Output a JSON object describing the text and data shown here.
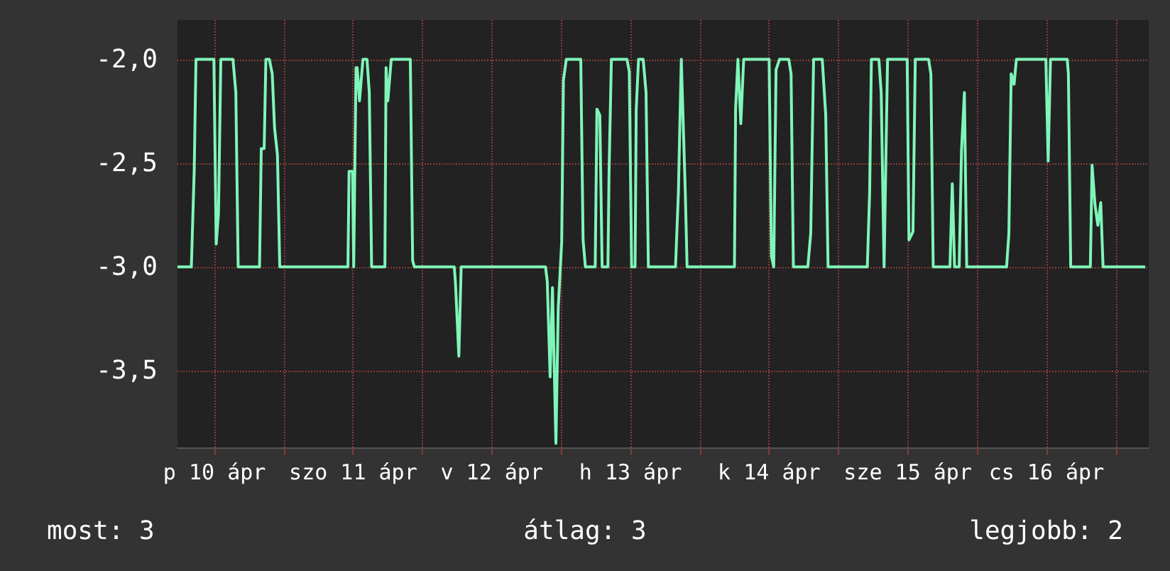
{
  "chart_data": {
    "type": "line",
    "x": [
      "--04-10T05:36",
      "--04-10T08:00",
      "--04-10T08:30",
      "--04-10T08:48",
      "--04-10T11:54",
      "--04-10T12:18",
      "--04-10T12:42",
      "--04-10T13:06",
      "--04-10T15:12",
      "--04-10T15:42",
      "--04-10T16:06",
      "--04-10T19:48",
      "--04-10T20:06",
      "--04-10T20:36",
      "--04-10T20:54",
      "--04-10T21:30",
      "--04-10T22:00",
      "--04-10T22:24",
      "--04-10T22:54",
      "--04-10T23:18",
      "--04-11T11:06",
      "--04-11T11:18",
      "--04-11T11:54",
      "--04-11T12:06",
      "--04-11T12:30",
      "--04-11T12:42",
      "--04-11T13:06",
      "--04-11T13:42",
      "--04-11T14:24",
      "--04-11T14:48",
      "--04-11T15:12",
      "--04-11T17:30",
      "--04-11T17:42",
      "--04-11T18:00",
      "--04-11T18:36",
      "--04-11T21:54",
      "--04-11T22:18",
      "--04-11T22:36",
      "--04-12T05:30",
      "--04-12T05:42",
      "--04-12T06:18",
      "--04-12T06:42",
      "--04-12T21:18",
      "--04-12T21:36",
      "--04-12T22:06",
      "--04-12T22:30",
      "--04-12T23:06",
      "--04-12T23:30",
      "--04-13T00:06",
      "--04-13T00:24",
      "--04-13T00:54",
      "--04-13T03:24",
      "--04-13T03:48",
      "--04-13T04:12",
      "--04-13T05:54",
      "--04-13T06:12",
      "--04-13T06:42",
      "--04-13T07:06",
      "--04-13T08:06",
      "--04-13T08:18",
      "--04-13T08:42",
      "--04-13T11:24",
      "--04-13T11:48",
      "--04-13T12:12",
      "--04-13T12:48",
      "--04-13T13:00",
      "--04-13T13:24",
      "--04-13T14:12",
      "--04-13T14:42",
      "--04-13T15:06",
      "--04-13T19:48",
      "--04-13T20:18",
      "--04-13T20:48",
      "--04-13T21:30",
      "--04-13T21:48",
      "--04-14T06:00",
      "--04-14T06:12",
      "--04-14T06:36",
      "--04-14T07:06",
      "--04-14T07:36",
      "--04-14T12:00",
      "--04-14T12:24",
      "--04-14T12:48",
      "--04-14T13:12",
      "--04-14T13:48",
      "--04-14T15:24",
      "--04-14T15:48",
      "--04-14T16:12",
      "--04-14T18:42",
      "--04-14T19:12",
      "--04-14T19:42",
      "--04-14T21:12",
      "--04-14T21:48",
      "--04-14T22:12",
      "--04-15T05:00",
      "--04-15T05:24",
      "--04-15T05:42",
      "--04-15T07:00",
      "--04-15T07:24",
      "--04-15T07:54",
      "--04-15T08:30",
      "--04-15T11:54",
      "--04-15T12:12",
      "--04-15T12:54",
      "--04-15T13:18",
      "--04-15T15:36",
      "--04-15T16:00",
      "--04-15T16:24",
      "--04-15T19:18",
      "--04-15T19:42",
      "--04-15T20:06",
      "--04-15T20:54",
      "--04-15T21:18",
      "--04-15T21:48",
      "--04-15T22:12",
      "--04-16T05:06",
      "--04-16T05:30",
      "--04-16T05:54",
      "--04-16T06:24",
      "--04-16T06:48",
      "--04-16T11:54",
      "--04-16T12:18",
      "--04-16T12:42",
      "--04-16T15:36",
      "--04-16T15:48",
      "--04-16T16:12",
      "--04-16T19:36",
      "--04-16T19:54",
      "--04-16T20:24",
      "--04-16T20:54",
      "--04-16T21:24",
      "--04-16T21:48",
      "--04-17T05:06"
    ],
    "series": [
      {
        "color": "#7ff5b8",
        "values": [
          -3.0,
          -3.0,
          -2.53,
          -2.0,
          -2.0,
          -2.89,
          -2.74,
          -2.0,
          -2.0,
          -2.16,
          -3.0,
          -3.0,
          -2.43,
          -2.43,
          -2.0,
          -2.0,
          -2.07,
          -2.33,
          -2.46,
          -3.0,
          -3.0,
          -2.54,
          -2.54,
          -3.0,
          -2.04,
          -2.04,
          -2.2,
          -2.0,
          -2.0,
          -2.16,
          -3.0,
          -3.0,
          -2.04,
          -2.2,
          -2.0,
          -2.0,
          -2.97,
          -3.0,
          -3.0,
          -3.07,
          -3.43,
          -3.0,
          -3.0,
          -3.07,
          -3.53,
          -3.1,
          -3.85,
          -3.2,
          -2.88,
          -2.1,
          -2.0,
          -2.0,
          -2.87,
          -3.0,
          -3.0,
          -2.24,
          -2.27,
          -3.0,
          -3.0,
          -2.54,
          -2.0,
          -2.0,
          -2.06,
          -3.0,
          -3.0,
          -2.24,
          -2.0,
          -2.0,
          -2.16,
          -3.0,
          -3.0,
          -2.64,
          -2.0,
          -2.65,
          -3.0,
          -3.0,
          -2.24,
          -2.0,
          -2.31,
          -2.0,
          -2.0,
          -2.95,
          -3.0,
          -2.05,
          -2.0,
          -2.0,
          -2.07,
          -3.0,
          -3.0,
          -2.84,
          -2.0,
          -2.0,
          -2.27,
          -3.0,
          -3.0,
          -2.64,
          -2.0,
          -2.0,
          -2.16,
          -3.0,
          -2.0,
          -2.0,
          -2.87,
          -2.83,
          -2.0,
          -2.0,
          -2.07,
          -3.0,
          -3.0,
          -2.6,
          -3.0,
          -3.0,
          -2.44,
          -2.16,
          -3.0,
          -3.0,
          -2.84,
          -2.07,
          -2.12,
          -2.0,
          -2.0,
          -2.49,
          -2.0,
          -2.0,
          -2.07,
          -3.0,
          -3.0,
          -2.51,
          -2.7,
          -2.8,
          -2.69,
          -3.0,
          -3.0
        ]
      }
    ],
    "xlim": [
      "--04-10T05:36",
      "--04-17T05:42"
    ],
    "xticks": [
      {
        "value": "--04-10T12:00",
        "label": "p 10 ápr"
      },
      {
        "value": "--04-11T00:00",
        "label": null
      },
      {
        "value": "--04-11T12:00",
        "label": "szo 11 ápr"
      },
      {
        "value": "--04-12T00:00",
        "label": null
      },
      {
        "value": "--04-12T12:00",
        "label": "v 12 ápr"
      },
      {
        "value": "--04-13T00:00",
        "label": null
      },
      {
        "value": "--04-13T12:00",
        "label": "h 13 ápr"
      },
      {
        "value": "--04-14T00:00",
        "label": null
      },
      {
        "value": "--04-14T12:00",
        "label": "k 14 ápr"
      },
      {
        "value": "--04-15T00:00",
        "label": null
      },
      {
        "value": "--04-15T12:00",
        "label": "sze 15 ápr"
      },
      {
        "value": "--04-16T00:00",
        "label": null
      },
      {
        "value": "--04-16T12:00",
        "label": "cs 16 ápr"
      },
      {
        "value": "--04-17T00:00",
        "label": null
      }
    ],
    "ylim": [
      -3.87,
      -1.81
    ],
    "yticks": [
      {
        "value": -3.5,
        "label": "-3,5"
      },
      {
        "value": -3.0,
        "label": "-3,0"
      },
      {
        "value": -2.5,
        "label": "-2,5"
      },
      {
        "value": -2.0,
        "label": "-2,0"
      }
    ],
    "grid": true,
    "marker": "none",
    "line_style": "solid",
    "annotations": [
      "most: 3",
      "átlag: 3",
      "legjobb: 2"
    ]
  }
}
